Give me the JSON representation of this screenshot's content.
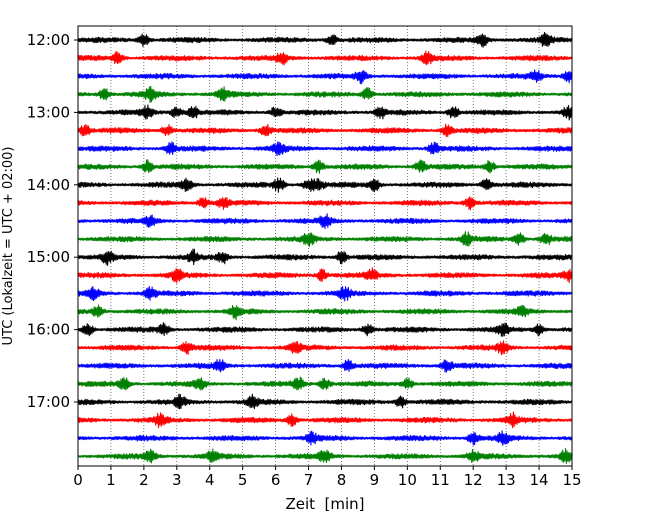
{
  "chart_data": {
    "type": "line",
    "chart_kind": "helicorder seismogram",
    "xlabel": "Zeit  [min]",
    "ylabel": "UTC (Lokalzeit = UTC + 02:00)",
    "xlim": [
      0,
      15
    ],
    "x_ticks": [
      0,
      1,
      2,
      3,
      4,
      5,
      6,
      7,
      8,
      9,
      10,
      11,
      12,
      13,
      14,
      15
    ],
    "x_tick_labels": [
      "0",
      "1",
      "2",
      "3",
      "4",
      "5",
      "6",
      "7",
      "8",
      "9",
      "10",
      "11",
      "12",
      "13",
      "14",
      "15"
    ],
    "grid": "vertical dotted lines at each minute",
    "y_tick_labels": [
      "12:00",
      "13:00",
      "14:00",
      "15:00",
      "16:00",
      "17:00"
    ],
    "trace_interval_min": 15,
    "traces": [
      {
        "start": "12:00",
        "color": "#000000"
      },
      {
        "start": "12:15",
        "color": "#ff0000"
      },
      {
        "start": "12:30",
        "color": "#0000ff"
      },
      {
        "start": "12:45",
        "color": "#008000"
      },
      {
        "start": "13:00",
        "color": "#000000"
      },
      {
        "start": "13:15",
        "color": "#ff0000"
      },
      {
        "start": "13:30",
        "color": "#0000ff"
      },
      {
        "start": "13:45",
        "color": "#008000"
      },
      {
        "start": "14:00",
        "color": "#000000"
      },
      {
        "start": "14:15",
        "color": "#ff0000"
      },
      {
        "start": "14:30",
        "color": "#0000ff"
      },
      {
        "start": "14:45",
        "color": "#008000"
      },
      {
        "start": "15:00",
        "color": "#000000"
      },
      {
        "start": "15:15",
        "color": "#ff0000"
      },
      {
        "start": "15:30",
        "color": "#0000ff"
      },
      {
        "start": "15:45",
        "color": "#008000"
      },
      {
        "start": "16:00",
        "color": "#000000"
      },
      {
        "start": "16:15",
        "color": "#ff0000"
      },
      {
        "start": "16:30",
        "color": "#0000ff"
      },
      {
        "start": "16:45",
        "color": "#008000"
      },
      {
        "start": "17:00",
        "color": "#000000"
      },
      {
        "start": "17:15",
        "color": "#ff0000"
      },
      {
        "start": "17:30",
        "color": "#0000ff"
      },
      {
        "start": "17:45",
        "color": "#008000"
      }
    ],
    "bursts_min": [
      [
        2.0,
        7.7,
        12.3,
        14.2
      ],
      [
        1.2,
        6.2,
        10.6
      ],
      [
        8.6,
        13.9,
        14.9
      ],
      [
        0.8,
        2.2,
        4.4,
        8.8
      ],
      [
        2.1,
        3.0,
        3.5,
        6.0,
        9.2,
        11.4,
        14.9
      ],
      [
        0.2,
        2.7,
        5.7,
        11.2
      ],
      [
        2.8,
        6.1,
        10.8
      ],
      [
        2.1,
        7.3,
        10.4,
        12.5
      ],
      [
        3.3,
        6.1,
        7.0,
        7.3,
        9.0,
        12.4
      ],
      [
        3.8,
        4.4,
        11.9
      ],
      [
        2.2,
        7.5
      ],
      [
        7.0,
        11.8,
        13.4,
        14.2
      ],
      [
        0.9,
        3.5,
        4.4,
        8.0
      ],
      [
        3.0,
        7.4,
        8.9,
        14.9
      ],
      [
        0.5,
        2.2,
        8.1
      ],
      [
        0.6,
        4.8,
        13.5
      ],
      [
        0.3,
        2.6,
        8.8,
        12.9,
        14.0
      ],
      [
        3.3,
        6.6,
        12.9
      ],
      [
        4.3,
        8.2,
        11.2
      ],
      [
        1.4,
        3.7,
        6.7,
        7.5,
        10.0
      ],
      [
        3.1,
        5.3,
        9.8
      ],
      [
        2.5,
        6.5,
        13.2
      ],
      [
        7.1,
        12.0,
        12.9
      ],
      [
        2.2,
        4.1,
        7.5,
        12.0,
        14.8
      ]
    ]
  }
}
